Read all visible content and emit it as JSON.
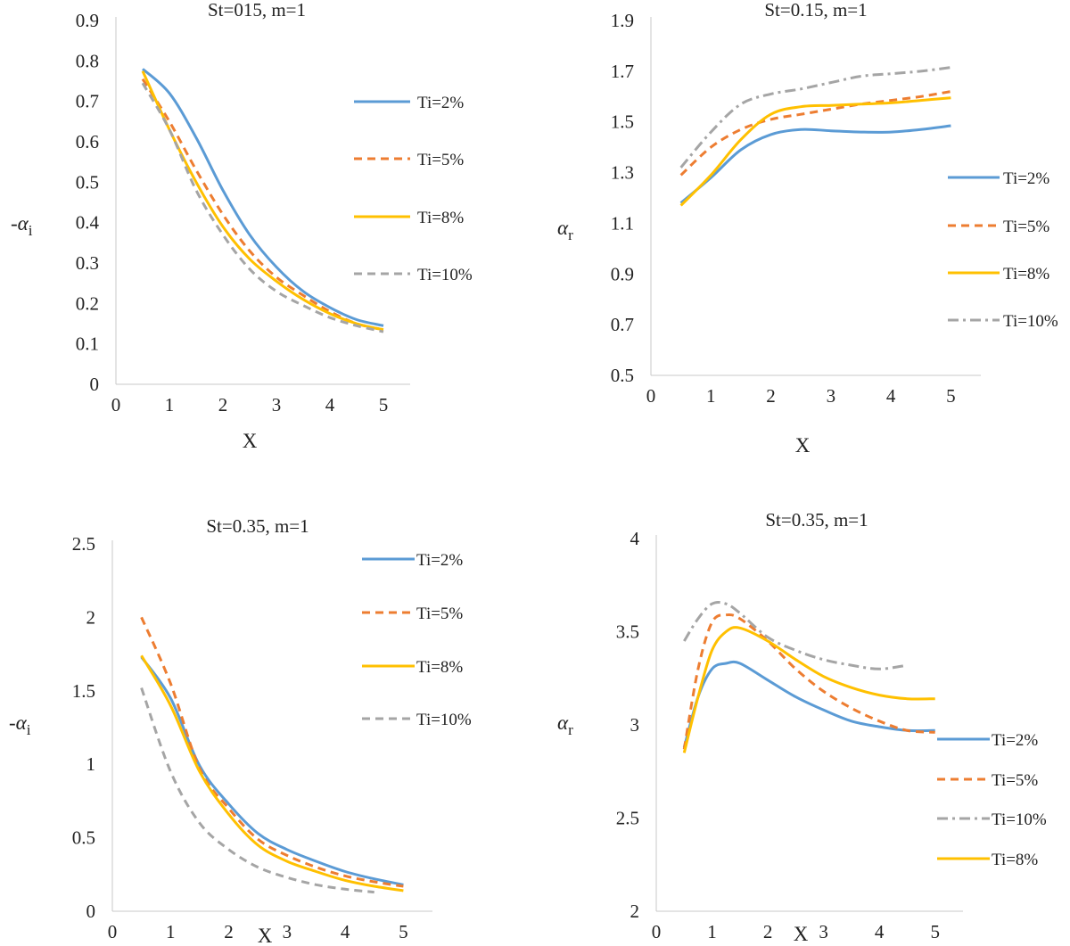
{
  "colors": {
    "blue": "#5B9BD5",
    "orange": "#ED7D31",
    "gold": "#FFC000",
    "gray": "#A5A5A5"
  },
  "chart_data": [
    {
      "type": "line",
      "title": "St=015, m=1",
      "xlabel": "X",
      "ylabel": "-αi",
      "ylabel_main": "-α",
      "ylabel_sub": "i",
      "xlim": [
        0,
        5.5
      ],
      "ylim": [
        0,
        0.9
      ],
      "xticks": [
        "0",
        "1",
        "2",
        "3",
        "4",
        "5"
      ],
      "yticks": [
        "0",
        "0.1",
        "0.2",
        "0.3",
        "0.4",
        "0.5",
        "0.6",
        "0.7",
        "0.8",
        "0.9"
      ],
      "legend": "right",
      "series": [
        {
          "name": "Ti=2%",
          "color": "#5B9BD5",
          "dash": "solid",
          "x": [
            0.5,
            1,
            1.5,
            2,
            2.5,
            3,
            3.5,
            4,
            4.5,
            5
          ],
          "y": [
            0.78,
            0.72,
            0.61,
            0.48,
            0.37,
            0.29,
            0.23,
            0.19,
            0.16,
            0.145
          ]
        },
        {
          "name": "Ti=5%",
          "color": "#ED7D31",
          "dash": "dashed",
          "x": [
            0.5,
            1,
            1.5,
            2,
            2.5,
            3,
            3.5,
            4,
            4.5,
            5
          ],
          "y": [
            0.755,
            0.65,
            0.53,
            0.42,
            0.33,
            0.265,
            0.22,
            0.18,
            0.15,
            0.135
          ]
        },
        {
          "name": "Ti=8%",
          "color": "#FFC000",
          "dash": "solid",
          "x": [
            0.5,
            1,
            1.5,
            2,
            2.5,
            3,
            3.5,
            4,
            4.5,
            5
          ],
          "y": [
            0.775,
            0.63,
            0.5,
            0.39,
            0.31,
            0.255,
            0.21,
            0.175,
            0.15,
            0.135
          ]
        },
        {
          "name": "Ti=10%",
          "color": "#A5A5A5",
          "dash": "dashed",
          "x": [
            0.5,
            1,
            1.5,
            2,
            2.5,
            3,
            3.5,
            4,
            4.5,
            5
          ],
          "y": [
            0.745,
            0.63,
            0.48,
            0.37,
            0.285,
            0.23,
            0.195,
            0.165,
            0.145,
            0.13
          ]
        }
      ]
    },
    {
      "type": "line",
      "title": "St=0.15, m=1",
      "xlabel": "X",
      "ylabel": "αr",
      "ylabel_main": "α",
      "ylabel_sub": "r",
      "xlim": [
        0,
        5.5
      ],
      "ylim": [
        0.5,
        1.9
      ],
      "xticks": [
        "0",
        "1",
        "2",
        "3",
        "4",
        "5"
      ],
      "yticks": [
        "0.5",
        "0.7",
        "0.9",
        "1.1",
        "1.3",
        "1.5",
        "1.7",
        "1.9"
      ],
      "legend": "right",
      "series": [
        {
          "name": "Ti=2%",
          "color": "#5B9BD5",
          "dash": "solid",
          "x": [
            0.5,
            1,
            1.5,
            2,
            2.5,
            3,
            3.5,
            4,
            4.5,
            5
          ],
          "y": [
            1.18,
            1.28,
            1.39,
            1.45,
            1.47,
            1.465,
            1.46,
            1.46,
            1.47,
            1.485
          ]
        },
        {
          "name": "Ti=5%",
          "color": "#ED7D31",
          "dash": "dashed",
          "x": [
            0.5,
            1,
            1.5,
            2,
            2.5,
            3,
            3.5,
            4,
            4.5,
            5
          ],
          "y": [
            1.29,
            1.4,
            1.47,
            1.51,
            1.53,
            1.55,
            1.57,
            1.585,
            1.6,
            1.62
          ]
        },
        {
          "name": "Ti=8%",
          "color": "#FFC000",
          "dash": "solid",
          "x": [
            0.5,
            1,
            1.5,
            2,
            2.5,
            3,
            3.5,
            4,
            4.5,
            5
          ],
          "y": [
            1.17,
            1.29,
            1.43,
            1.53,
            1.56,
            1.565,
            1.57,
            1.575,
            1.585,
            1.595
          ]
        },
        {
          "name": "Ti=10%",
          "color": "#A5A5A5",
          "dash": "dashdot",
          "x": [
            0.5,
            1,
            1.5,
            2,
            2.5,
            3,
            3.5,
            4,
            4.5,
            5
          ],
          "y": [
            1.32,
            1.46,
            1.57,
            1.61,
            1.63,
            1.655,
            1.68,
            1.69,
            1.7,
            1.715
          ]
        }
      ]
    },
    {
      "type": "line",
      "title": "St=0.35, m=1",
      "xlabel": "X",
      "ylabel": "-αi",
      "ylabel_main": "-α",
      "ylabel_sub": "i",
      "xlim": [
        0,
        5.5
      ],
      "ylim": [
        0,
        2.5
      ],
      "xticks": [
        "0",
        "1",
        "2",
        "3",
        "4",
        "5"
      ],
      "yticks": [
        "0",
        "0.5",
        "1",
        "1.5",
        "2",
        "2.5"
      ],
      "legend": "right",
      "series": [
        {
          "name": "Ti=2%",
          "color": "#5B9BD5",
          "dash": "solid",
          "x": [
            0.5,
            1,
            1.5,
            2,
            2.5,
            3,
            3.5,
            4,
            4.5,
            5
          ],
          "y": [
            1.73,
            1.45,
            0.99,
            0.73,
            0.53,
            0.42,
            0.34,
            0.27,
            0.22,
            0.18
          ]
        },
        {
          "name": "Ti=5%",
          "color": "#ED7D31",
          "dash": "dashed",
          "x": [
            0.5,
            1,
            1.5,
            2,
            2.5,
            3,
            3.5,
            4,
            4.5,
            5
          ],
          "y": [
            2.0,
            1.55,
            0.97,
            0.7,
            0.49,
            0.38,
            0.3,
            0.24,
            0.2,
            0.17
          ]
        },
        {
          "name": "Ti=8%",
          "color": "#FFC000",
          "dash": "solid",
          "x": [
            0.5,
            1,
            1.5,
            2,
            2.5,
            3,
            3.5,
            4,
            4.5,
            5
          ],
          "y": [
            1.74,
            1.4,
            0.95,
            0.66,
            0.45,
            0.34,
            0.27,
            0.21,
            0.17,
            0.14
          ]
        },
        {
          "name": "Ti=10%",
          "color": "#A5A5A5",
          "dash": "dashed",
          "x": [
            0.5,
            1,
            1.5,
            2,
            2.5,
            3,
            3.5,
            4,
            4.5
          ],
          "y": [
            1.52,
            0.95,
            0.6,
            0.42,
            0.3,
            0.23,
            0.18,
            0.15,
            0.13
          ]
        }
      ]
    },
    {
      "type": "line",
      "title": "St=0.35, m=1",
      "xlabel": "X",
      "ylabel": "αr",
      "ylabel_main": "α",
      "ylabel_sub": "r",
      "xlim": [
        0,
        5.5
      ],
      "ylim": [
        2,
        4
      ],
      "xticks": [
        "0",
        "1",
        "2",
        "3",
        "4",
        "5"
      ],
      "yticks": [
        "2",
        "2.5",
        "3",
        "3.5",
        "4"
      ],
      "legend": "right",
      "series": [
        {
          "name": "Ti=2%",
          "color": "#5B9BD5",
          "dash": "solid",
          "x": [
            0.5,
            0.75,
            1,
            1.25,
            1.5,
            2,
            2.5,
            3,
            3.5,
            4,
            4.5,
            5
          ],
          "y": [
            2.88,
            3.15,
            3.3,
            3.33,
            3.33,
            3.24,
            3.15,
            3.08,
            3.02,
            2.99,
            2.97,
            2.97
          ]
        },
        {
          "name": "Ti=5%",
          "color": "#ED7D31",
          "dash": "dashed",
          "x": [
            0.5,
            0.75,
            1,
            1.25,
            1.5,
            2,
            2.5,
            3,
            3.5,
            4,
            4.5,
            5
          ],
          "y": [
            2.87,
            3.3,
            3.55,
            3.59,
            3.57,
            3.45,
            3.3,
            3.18,
            3.09,
            3.02,
            2.97,
            2.96
          ]
        },
        {
          "name": "Ti=10%",
          "color": "#A5A5A5",
          "dash": "dashdot",
          "x": [
            0.5,
            0.75,
            1,
            1.25,
            1.5,
            2,
            2.5,
            3,
            3.5,
            4,
            4.5
          ],
          "y": [
            3.45,
            3.57,
            3.65,
            3.65,
            3.6,
            3.47,
            3.4,
            3.35,
            3.32,
            3.3,
            3.32
          ]
        },
        {
          "name": "Ti=8%",
          "color": "#FFC000",
          "dash": "solid",
          "x": [
            0.5,
            0.75,
            1,
            1.25,
            1.5,
            2,
            2.5,
            3,
            3.5,
            4,
            4.5,
            5
          ],
          "y": [
            2.85,
            3.15,
            3.4,
            3.5,
            3.52,
            3.45,
            3.35,
            3.26,
            3.2,
            3.16,
            3.14,
            3.14
          ]
        }
      ]
    }
  ]
}
